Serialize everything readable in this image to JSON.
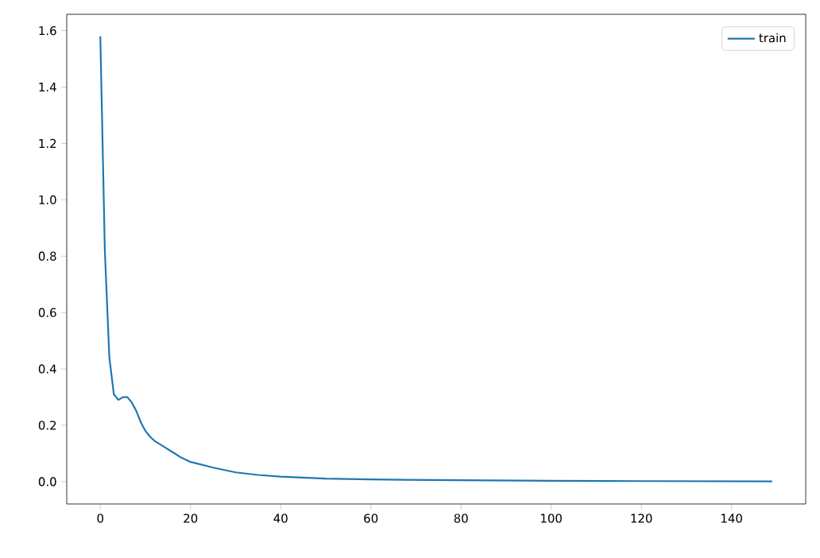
{
  "chart_data": {
    "type": "line",
    "x": [
      0,
      1,
      2,
      3,
      4,
      5,
      6,
      7,
      8,
      9,
      10,
      11,
      12,
      14,
      16,
      18,
      20,
      25,
      30,
      35,
      40,
      50,
      60,
      80,
      100,
      120,
      149
    ],
    "series": [
      {
        "name": "train",
        "color": "#1f77b4",
        "values": [
          1.58,
          0.82,
          0.44,
          0.31,
          0.29,
          0.3,
          0.3,
          0.28,
          0.25,
          0.21,
          0.18,
          0.16,
          0.145,
          0.125,
          0.105,
          0.085,
          0.07,
          0.05,
          0.033,
          0.024,
          0.018,
          0.011,
          0.008,
          0.005,
          0.003,
          0.002,
          0.001
        ]
      }
    ],
    "xlim": [
      -7.45,
      156.45
    ],
    "ylim": [
      -0.079,
      1.658
    ],
    "xticks": [
      0,
      20,
      40,
      60,
      80,
      100,
      120,
      140
    ],
    "yticks": [
      {
        "value": 0,
        "label": "0.0"
      },
      {
        "value": 0.2,
        "label": "0.2"
      },
      {
        "value": 0.4,
        "label": "0.4"
      },
      {
        "value": 0.6,
        "label": "0.6"
      },
      {
        "value": 0.8,
        "label": "0.8"
      },
      {
        "value": 1.0,
        "label": "1.0"
      },
      {
        "value": 1.2,
        "label": "1.2"
      },
      {
        "value": 1.4,
        "label": "1.4"
      },
      {
        "value": 1.6,
        "label": "1.6"
      }
    ],
    "legend": "top right",
    "grid": false,
    "marker": "none",
    "line_style": "solid"
  }
}
